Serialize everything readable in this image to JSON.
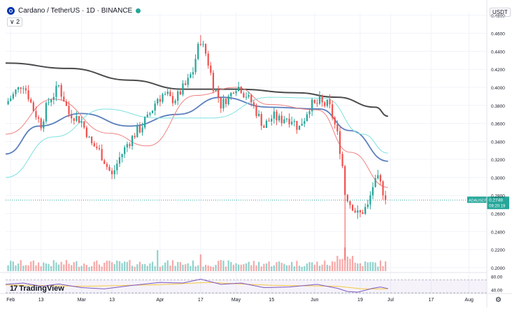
{
  "header": {
    "symbol": "Cardano / TetherUS · 1D · BINANCE",
    "indicator_count": "∨ 2",
    "currency": "USDT",
    "logo_icon": "cardano-coin-icon",
    "status_icon": "market-open-dot-icon"
  },
  "branding": {
    "name": "TradingView"
  },
  "price_label": {
    "ticker": "ADAUSDT",
    "price": "0.2749",
    "countdown": "09:20:19"
  },
  "colors": {
    "up": "#26a69a",
    "down": "#ef5350",
    "ma_long": "#4a4a4a",
    "ma_mid": "#5b7fbd",
    "ma_short": "#f08080",
    "ma_cyan": "#7fe0e0",
    "rsi": "#7e57c2",
    "rsi_ma": "#f5c842"
  },
  "chart_data": {
    "type": "candlestick",
    "y_tick_labels": [
      "0.2000",
      "0.2200",
      "0.2400",
      "0.2600",
      "0.2800",
      "0.3000",
      "0.3200",
      "0.3400",
      "0.3600",
      "0.3800",
      "0.4000",
      "0.4200",
      "0.4400",
      "0.4600",
      "0.4800"
    ],
    "ylim": [
      0.196,
      0.483
    ],
    "x_tick_labels": [
      "Feb",
      "13",
      "Mar",
      "13",
      "Apr",
      "17",
      "May",
      "15",
      "Jun",
      "19",
      "Jul",
      "17",
      "Aug"
    ],
    "xlim_days": [
      "2022-01-30",
      "2022-08-08"
    ],
    "current_price": 0.2749,
    "candles": {
      "anchor_closes": [
        [
          "2022-01-31",
          0.385
        ],
        [
          "2022-02-03",
          0.395
        ],
        [
          "2022-02-06",
          0.405
        ],
        [
          "2022-02-10",
          0.375
        ],
        [
          "2022-02-13",
          0.358
        ],
        [
          "2022-02-16",
          0.384
        ],
        [
          "2022-02-20",
          0.402
        ],
        [
          "2022-02-24",
          0.371
        ],
        [
          "2022-03-01",
          0.362
        ],
        [
          "2022-03-05",
          0.336
        ],
        [
          "2022-03-07",
          0.333
        ],
        [
          "2022-03-10",
          0.318
        ],
        [
          "2022-03-13",
          0.302
        ],
        [
          "2022-03-16",
          0.322
        ],
        [
          "2022-03-20",
          0.342
        ],
        [
          "2022-03-24",
          0.353
        ],
        [
          "2022-03-27",
          0.366
        ],
        [
          "2022-03-31",
          0.388
        ],
        [
          "2022-04-02",
          0.392
        ],
        [
          "2022-04-06",
          0.386
        ],
        [
          "2022-04-10",
          0.397
        ],
        [
          "2022-04-14",
          0.418
        ],
        [
          "2022-04-15",
          0.432
        ],
        [
          "2022-04-17",
          0.452
        ],
        [
          "2022-04-19",
          0.438
        ],
        [
          "2022-04-22",
          0.404
        ],
        [
          "2022-04-25",
          0.382
        ],
        [
          "2022-04-28",
          0.388
        ],
        [
          "2022-05-01",
          0.403
        ],
        [
          "2022-05-04",
          0.395
        ],
        [
          "2022-05-07",
          0.384
        ],
        [
          "2022-05-10",
          0.366
        ],
        [
          "2022-05-12",
          0.356
        ],
        [
          "2022-05-15",
          0.366
        ],
        [
          "2022-05-18",
          0.365
        ],
        [
          "2022-05-22",
          0.367
        ],
        [
          "2022-05-26",
          0.356
        ],
        [
          "2022-05-30",
          0.378
        ],
        [
          "2022-06-03",
          0.383
        ],
        [
          "2022-06-07",
          0.378
        ],
        [
          "2022-06-10",
          0.348
        ],
        [
          "2022-06-12",
          0.313
        ],
        [
          "2022-06-13",
          0.282
        ],
        [
          "2022-06-15",
          0.272
        ],
        [
          "2022-06-18",
          0.258
        ],
        [
          "2022-06-20",
          0.262
        ],
        [
          "2022-06-22",
          0.268
        ],
        [
          "2022-06-24",
          0.291
        ],
        [
          "2022-06-26",
          0.298
        ],
        [
          "2022-06-28",
          0.284
        ],
        [
          "2022-06-29",
          0.2749
        ]
      ],
      "extreme_wicks": {
        "2022-04-17": 0.458,
        "2022-06-13": 0.208,
        "2022-06-18": 0.254,
        "2022-06-25": 0.303
      }
    },
    "moving_averages": [
      {
        "label_color": "ma_long",
        "points": [
          [
            "2022-01-30",
            0.427
          ],
          [
            "2022-02-24",
            0.421
          ],
          [
            "2022-03-20",
            0.408
          ],
          [
            "2022-04-10",
            0.398
          ],
          [
            "2022-05-01",
            0.398
          ],
          [
            "2022-05-25",
            0.394
          ],
          [
            "2022-06-10",
            0.389
          ],
          [
            "2022-06-25",
            0.378
          ],
          [
            "2022-06-30",
            0.368
          ]
        ]
      },
      {
        "label_color": "ma_mid",
        "points": [
          [
            "2022-01-30",
            0.326
          ],
          [
            "2022-02-12",
            0.357
          ],
          [
            "2022-03-01",
            0.371
          ],
          [
            "2022-03-20",
            0.357
          ],
          [
            "2022-04-08",
            0.37
          ],
          [
            "2022-04-25",
            0.389
          ],
          [
            "2022-05-14",
            0.378
          ],
          [
            "2022-06-03",
            0.376
          ],
          [
            "2022-06-15",
            0.352
          ],
          [
            "2022-06-30",
            0.318
          ]
        ]
      },
      {
        "label_color": "ma_short",
        "points": [
          [
            "2022-01-30",
            0.348
          ],
          [
            "2022-02-18",
            0.387
          ],
          [
            "2022-03-12",
            0.349
          ],
          [
            "2022-03-27",
            0.335
          ],
          [
            "2022-04-15",
            0.391
          ],
          [
            "2022-05-01",
            0.4
          ],
          [
            "2022-05-14",
            0.381
          ],
          [
            "2022-06-02",
            0.375
          ],
          [
            "2022-06-15",
            0.328
          ],
          [
            "2022-06-30",
            0.289
          ]
        ]
      },
      {
        "label_color": "ma_cyan",
        "points": [
          [
            "2022-01-30",
            0.3
          ],
          [
            "2022-02-18",
            0.345
          ],
          [
            "2022-03-10",
            0.376
          ],
          [
            "2022-03-31",
            0.366
          ],
          [
            "2022-04-22",
            0.366
          ],
          [
            "2022-05-14",
            0.389
          ],
          [
            "2022-06-05",
            0.388
          ],
          [
            "2022-06-20",
            0.348
          ],
          [
            "2022-06-30",
            0.327
          ]
        ]
      }
    ],
    "rsi": {
      "tick_labels": [
        "80.00",
        "40.00"
      ],
      "ylim": [
        30,
        90
      ],
      "band": [
        70,
        30
      ],
      "points": [
        [
          "2022-01-30",
          56
        ],
        [
          "2022-02-06",
          60
        ],
        [
          "2022-02-13",
          50
        ],
        [
          "2022-02-20",
          57
        ],
        [
          "2022-03-01",
          46
        ],
        [
          "2022-03-10",
          42
        ],
        [
          "2022-03-20",
          52
        ],
        [
          "2022-04-01",
          62
        ],
        [
          "2022-04-10",
          60
        ],
        [
          "2022-04-17",
          72
        ],
        [
          "2022-04-25",
          56
        ],
        [
          "2022-05-03",
          60
        ],
        [
          "2022-05-12",
          46
        ],
        [
          "2022-05-22",
          48
        ],
        [
          "2022-06-02",
          56
        ],
        [
          "2022-06-10",
          44
        ],
        [
          "2022-06-14",
          34
        ],
        [
          "2022-06-18",
          32
        ],
        [
          "2022-06-24",
          44
        ],
        [
          "2022-06-27",
          48
        ],
        [
          "2022-06-30",
          43
        ]
      ],
      "ma_points": [
        [
          "2022-01-30",
          54
        ],
        [
          "2022-03-01",
          50
        ],
        [
          "2022-04-01",
          55
        ],
        [
          "2022-04-20",
          62
        ],
        [
          "2022-05-15",
          53
        ],
        [
          "2022-06-10",
          50
        ],
        [
          "2022-06-20",
          42
        ],
        [
          "2022-06-30",
          42
        ]
      ]
    }
  }
}
